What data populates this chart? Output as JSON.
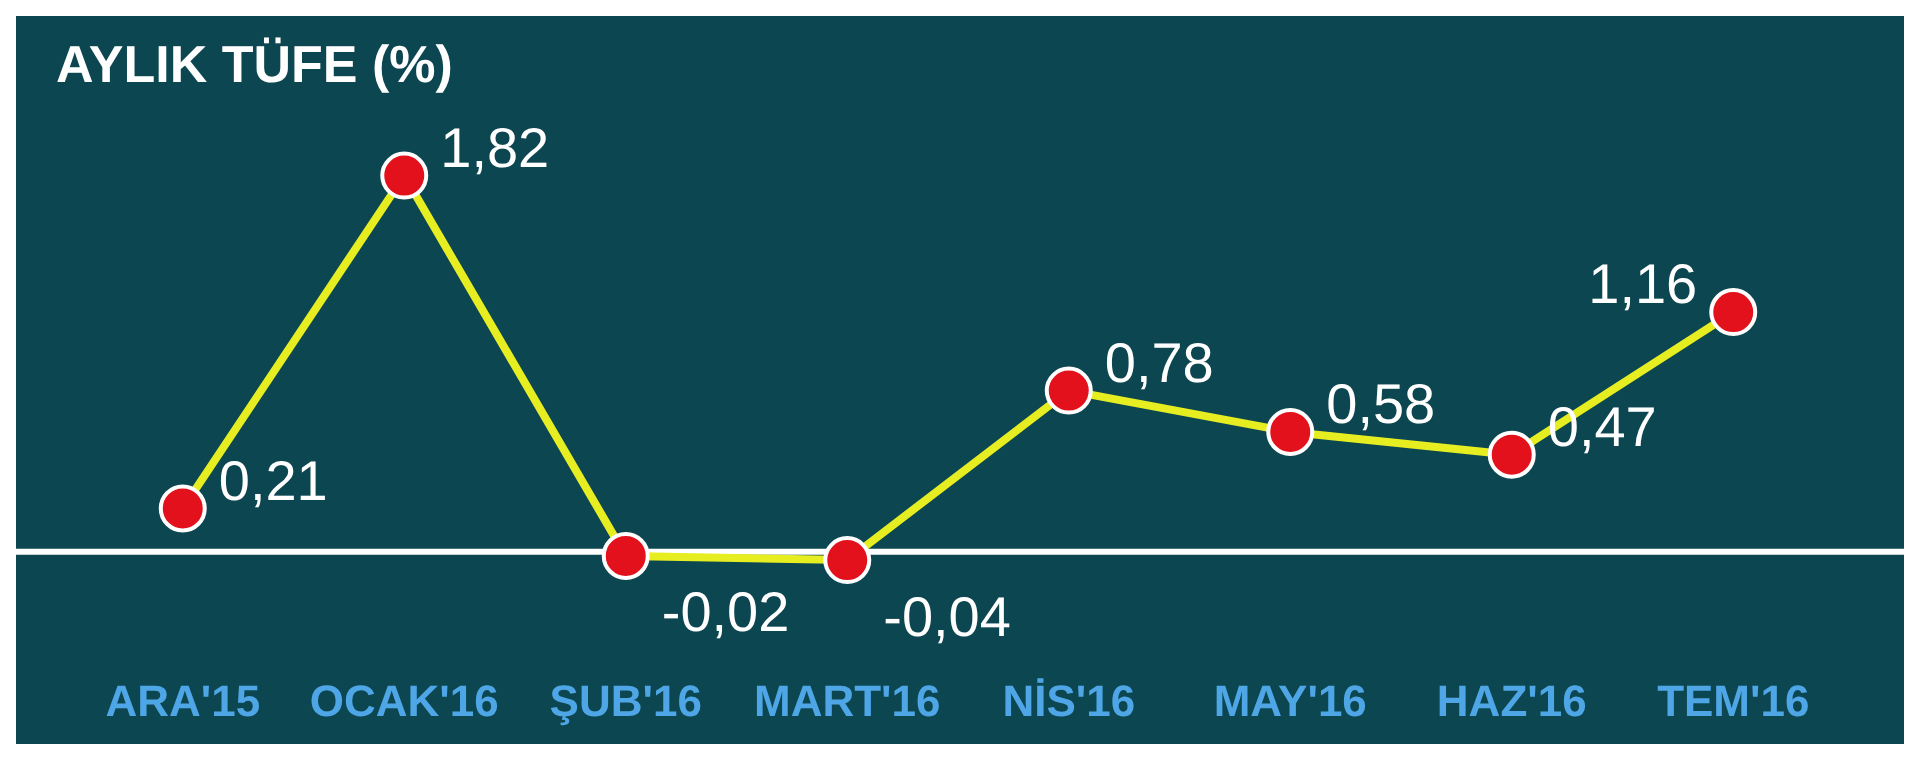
{
  "chart_data": {
    "type": "line",
    "title": "AYLIK TÜFE (%)",
    "categories": [
      "ARA'15",
      "OCAK'16",
      "ŞUB'16",
      "MART'16",
      "NİS'16",
      "MAY'16",
      "HAZ'16",
      "TEM'16"
    ],
    "series": [
      {
        "color": "#e6ee22",
        "values": [
          0.21,
          1.82,
          -0.02,
          -0.04,
          0.78,
          0.58,
          0.47,
          1.16
        ],
        "value_labels": [
          "0,21",
          "1,82",
          "-0,02",
          "-0,04",
          "0,78",
          "0,58",
          "0,47",
          "1,16"
        ]
      }
    ],
    "relative": false,
    "marker": "circle",
    "line_style": "solid",
    "grid": false,
    "legend": false,
    "ref_lines": [
      {
        "axis": "y",
        "value": 0,
        "color": "#ffffff"
      }
    ]
  }
}
